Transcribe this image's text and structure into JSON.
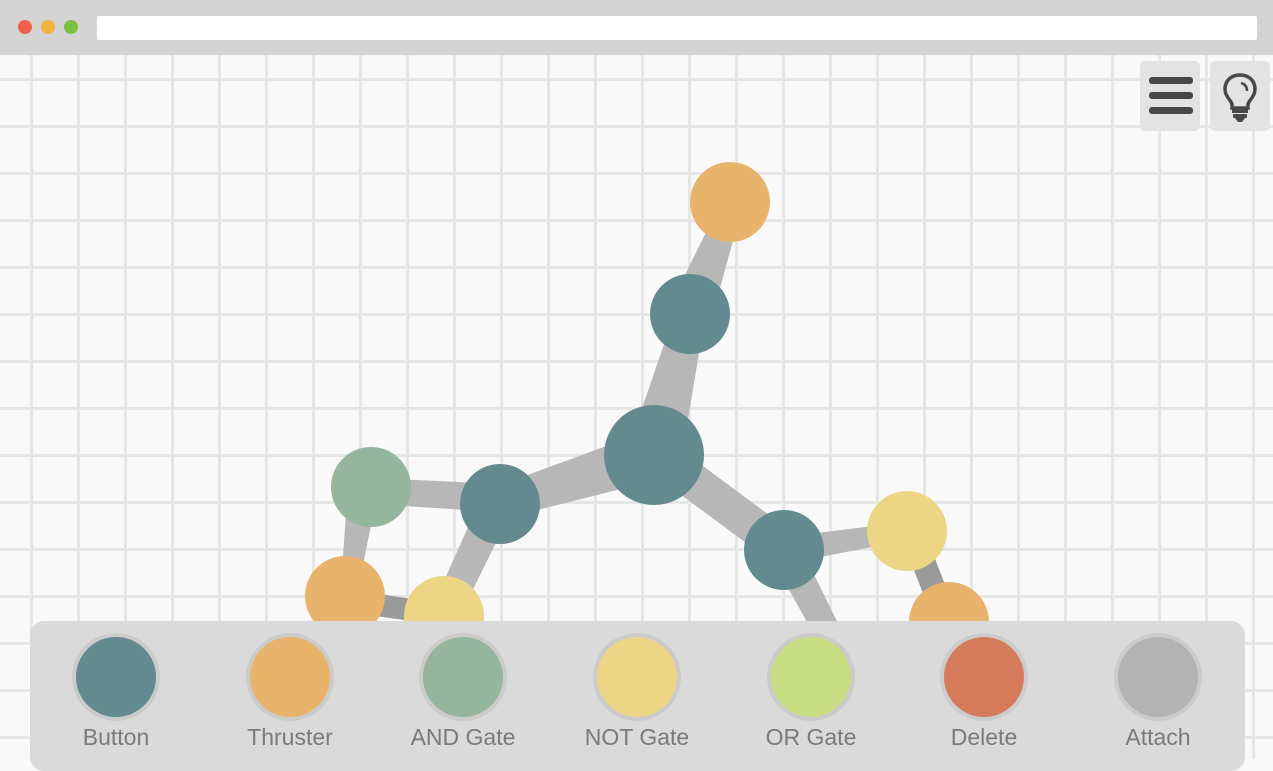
{
  "window": {
    "url": ""
  },
  "colors": {
    "button": "#638a8f",
    "thruster": "#e8b36a",
    "and_gate": "#95b59c",
    "not_gate": "#ecd685",
    "or_gate": "#c9de82",
    "delete": "#d57b5b",
    "attach": "#b3b3b3",
    "link": "#b7b7b7",
    "link_dark": "#999999"
  },
  "top_controls": {
    "menu_icon": "hamburger-menu-icon",
    "hint_icon": "lightbulb-icon"
  },
  "toolbar": {
    "tools": [
      {
        "label": "Button",
        "color": "#638a8f"
      },
      {
        "label": "Thruster",
        "color": "#e8b36a"
      },
      {
        "label": "AND Gate",
        "color": "#95b59c"
      },
      {
        "label": "NOT Gate",
        "color": "#ecd685"
      },
      {
        "label": "OR Gate",
        "color": "#c9de82"
      },
      {
        "label": "Delete",
        "color": "#d57b5b"
      },
      {
        "label": "Attach",
        "color": "#b3b3b3"
      }
    ]
  }
}
